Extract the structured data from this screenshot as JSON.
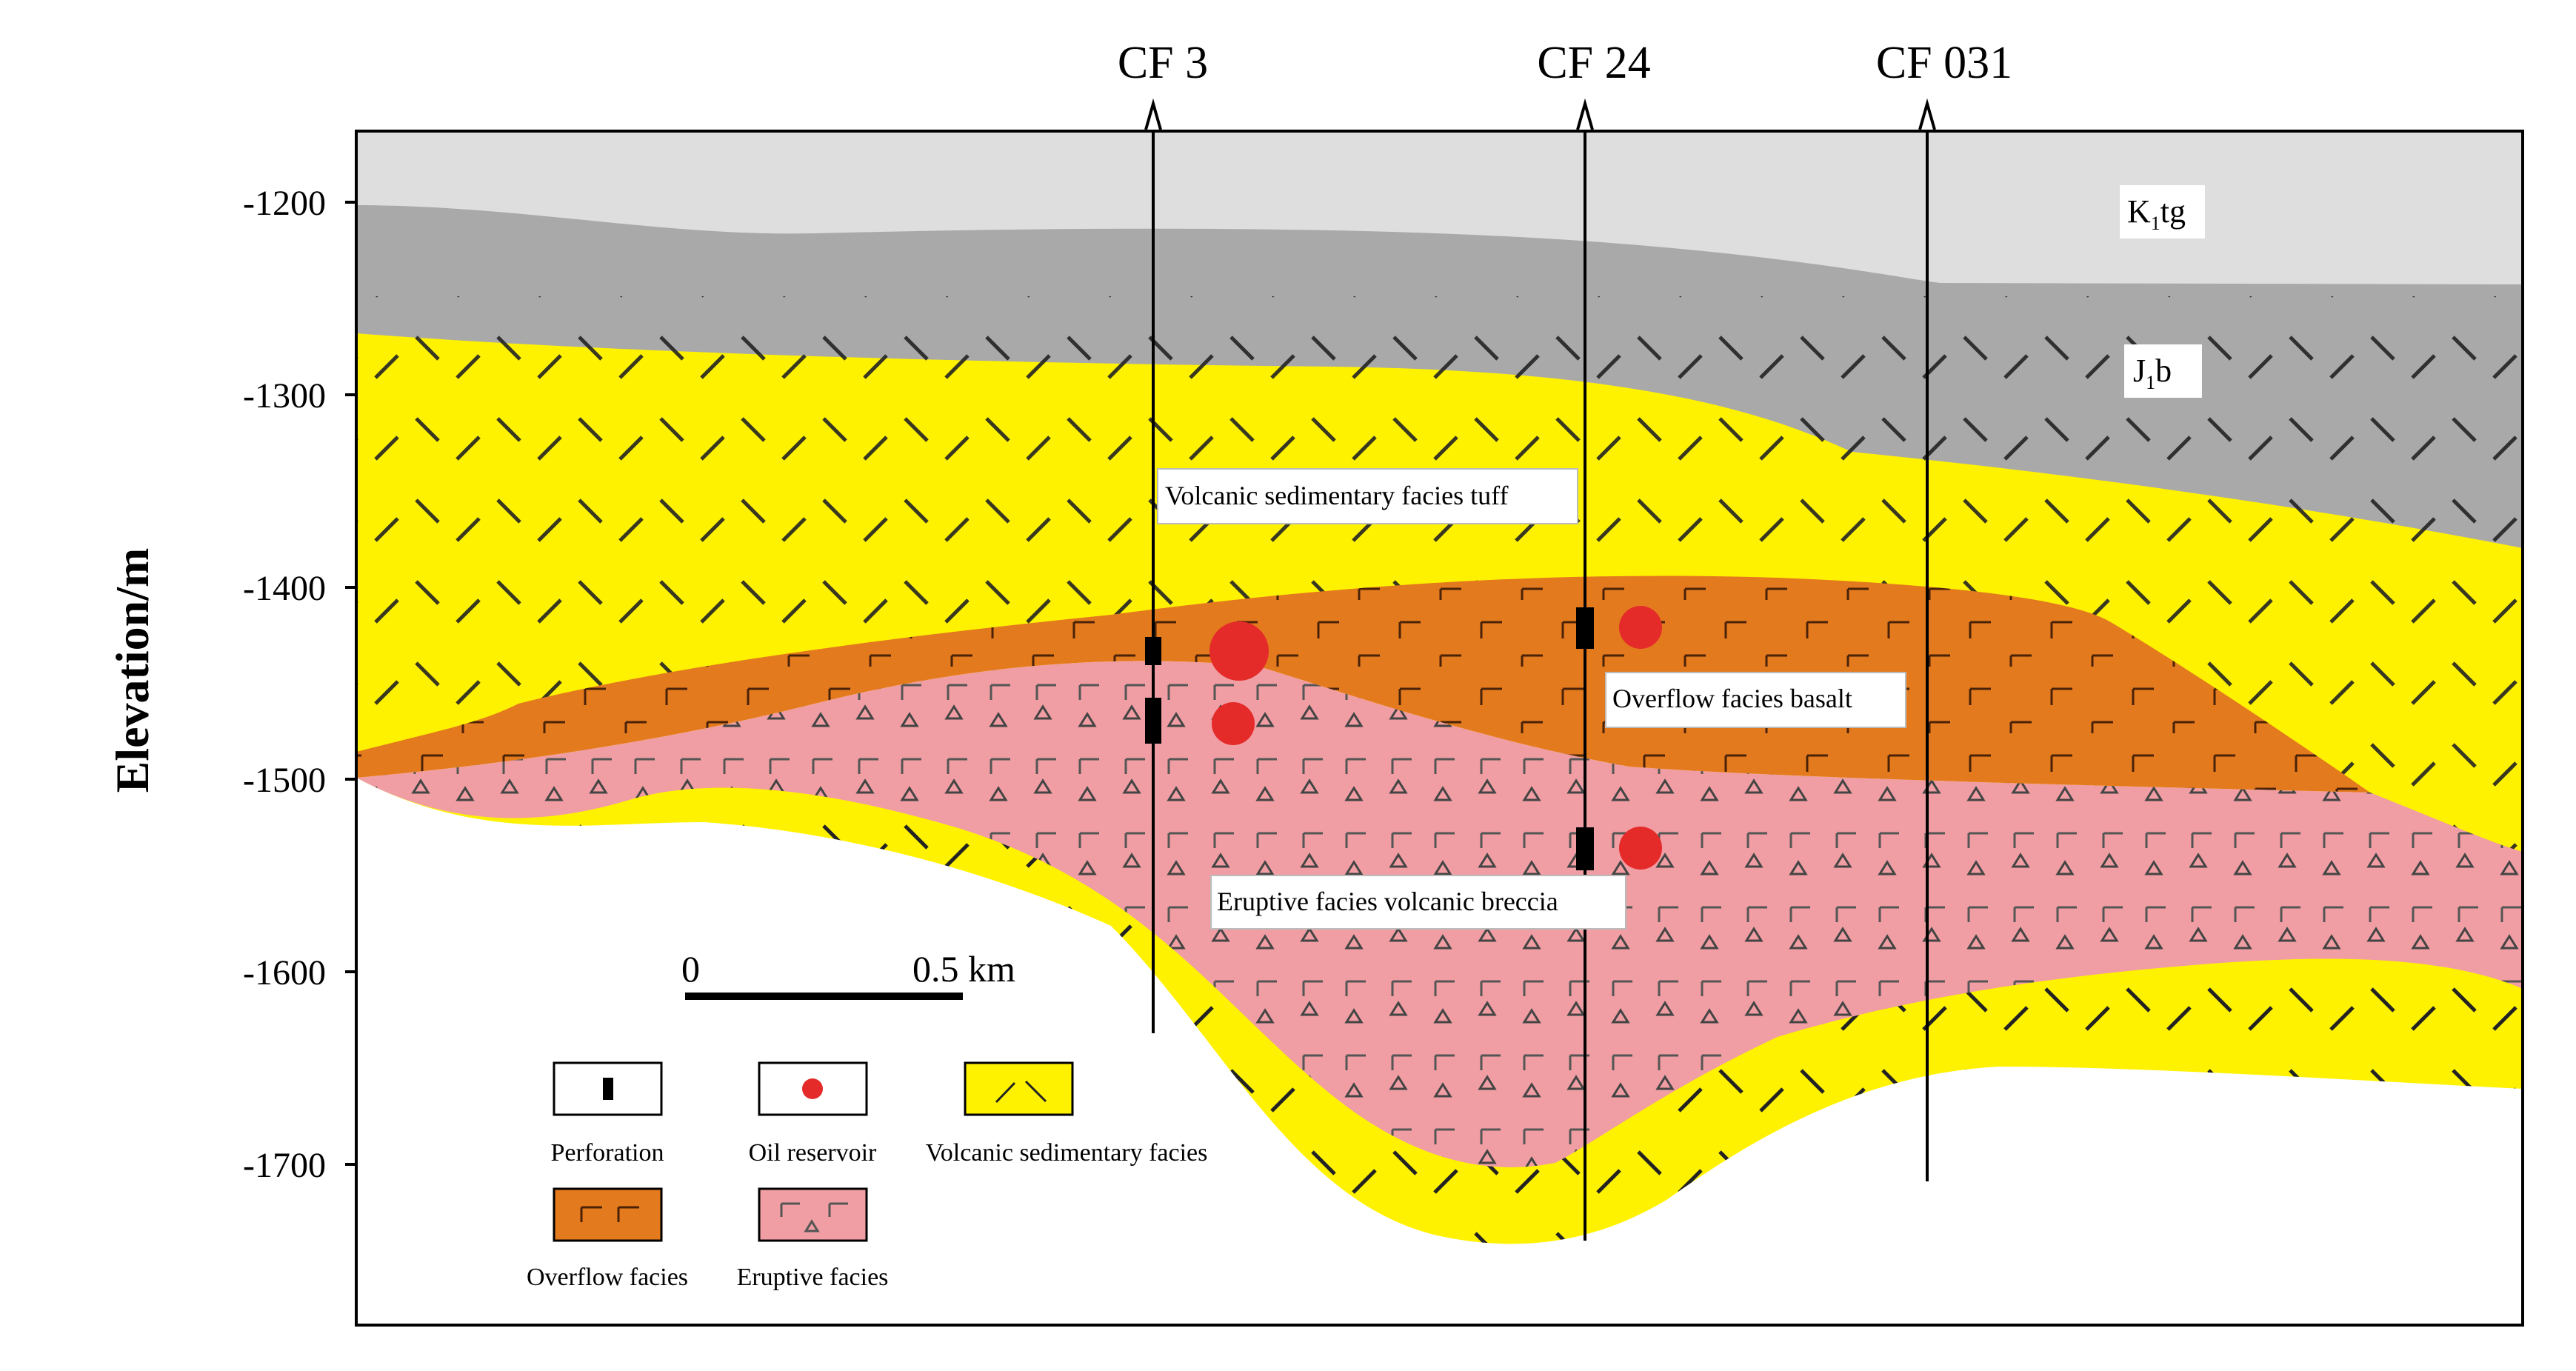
{
  "y_axis": {
    "label": "Elevation/m",
    "ticks": [
      "-1200",
      "-1300",
      "-1400",
      "-1500",
      "-1600",
      "-1700"
    ]
  },
  "wells": [
    "CF 3",
    "CF 24",
    "CF 031"
  ],
  "formations": {
    "top": {
      "main": "K",
      "sub": "1",
      "rest": "tg"
    },
    "second": {
      "main": "J",
      "sub": "1",
      "rest": "b"
    }
  },
  "annotations": {
    "tuff": "Volcanic sedimentary facies tuff",
    "basalt": "Overflow facies  basalt",
    "breccia": "Eruptive facies volcanic breccia"
  },
  "scale": {
    "start": "0",
    "end": "0.5  km"
  },
  "legend": {
    "perforation": "Perforation",
    "oil_reservoir": "Oil reservoir",
    "volcanic_sedimentary": "Volcanic sedimentary facies",
    "overflow": "Overflow facies",
    "eruptive": "Eruptive facies"
  },
  "colors": {
    "k1tg": "#dedede",
    "j1b": "#a9a9a9",
    "volcanic_sedimentary": "#fff200",
    "overflow": "#e47a1e",
    "eruptive": "#f09ea3",
    "oil": "#e52a2a",
    "perforation": "#000000"
  }
}
